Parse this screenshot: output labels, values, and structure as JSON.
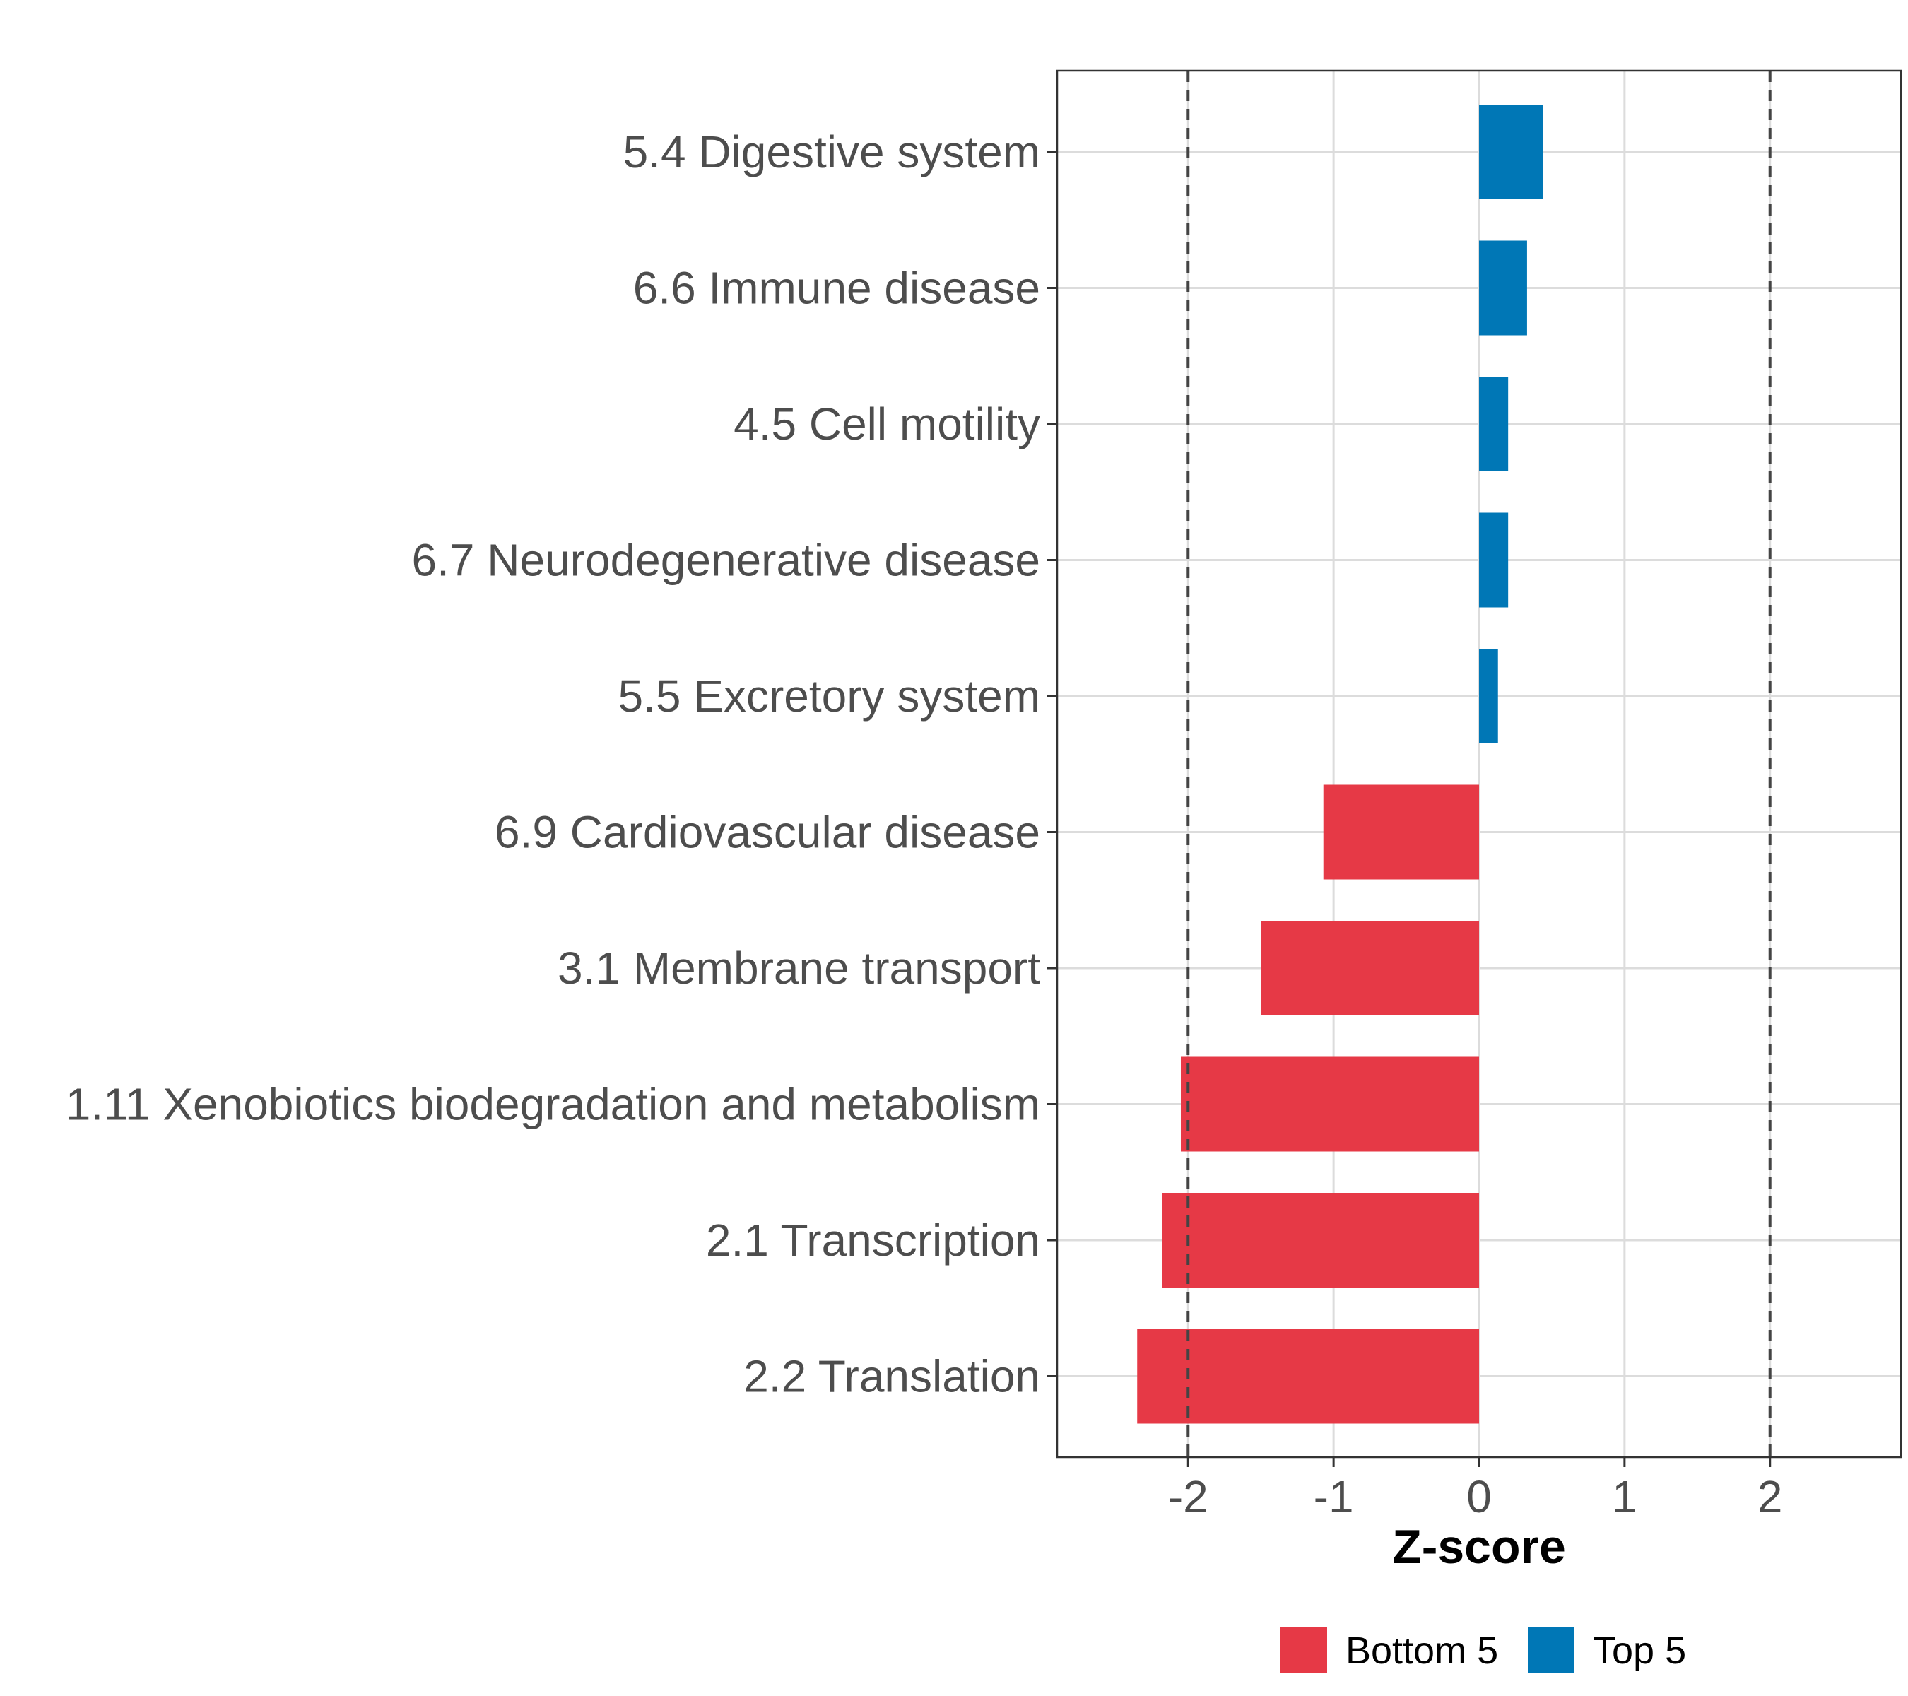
{
  "chart_data": {
    "type": "bar",
    "orientation": "horizontal",
    "categories": [
      "5.4 Digestive system",
      "6.6 Immune disease",
      "4.5 Cell motility",
      "6.7 Neurodegenerative disease",
      "5.5 Excretory system",
      "6.9 Cardiovascular disease",
      "3.1 Membrane transport",
      "1.11 Xenobiotics biodegradation and metabolism",
      "2.1 Transcription",
      "2.2 Translation"
    ],
    "values": [
      0.44,
      0.33,
      0.2,
      0.2,
      0.13,
      -1.07,
      -1.5,
      -2.05,
      -2.18,
      -2.35
    ],
    "groups": [
      "Top 5",
      "Top 5",
      "Top 5",
      "Top 5",
      "Top 5",
      "Bottom 5",
      "Bottom 5",
      "Bottom 5",
      "Bottom 5",
      "Bottom 5"
    ],
    "xlabel": "Z-score",
    "ylabel": "",
    "xlim": [
      -2.9,
      2.9
    ],
    "xticks": [
      "-2",
      "-1",
      "0",
      "1",
      "2"
    ],
    "xtick_values": [
      -2,
      -1,
      0,
      1,
      2
    ],
    "reference_lines": [
      -2,
      2
    ],
    "grid": true,
    "legend": {
      "position": "bottom",
      "entries": [
        {
          "label": "Bottom 5",
          "color": "#e63946"
        },
        {
          "label": "Top 5",
          "color": "#0077b6"
        }
      ]
    },
    "colors": {
      "Bottom 5": "#e63946",
      "Top 5": "#0077b6"
    }
  }
}
